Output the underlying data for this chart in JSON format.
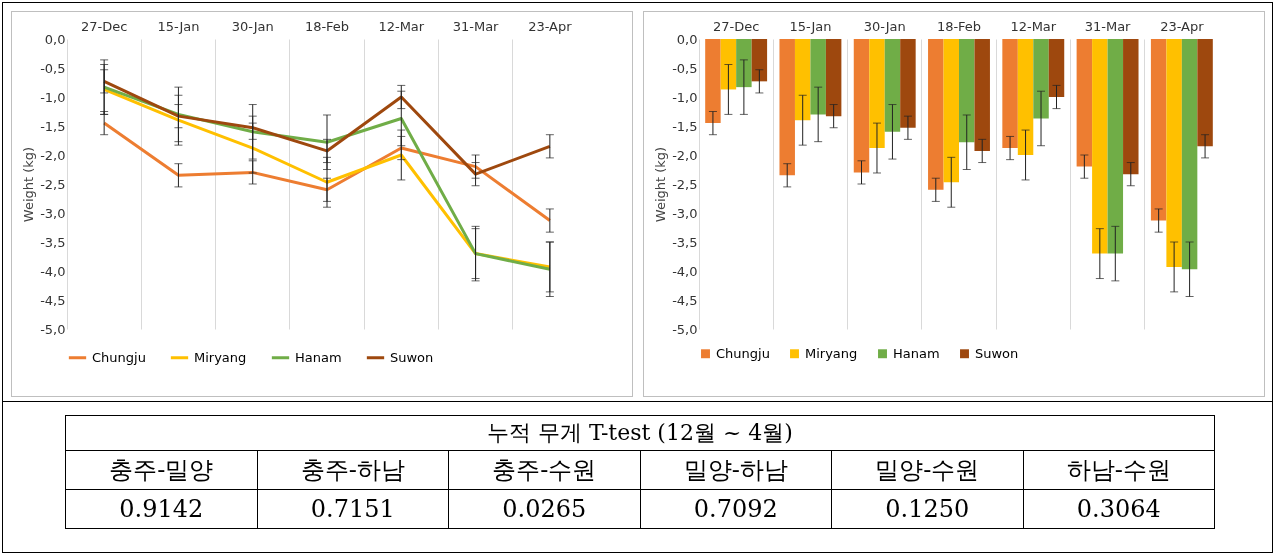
{
  "chart_data": [
    {
      "type": "line",
      "ylabel": "Weight (kg)",
      "categories": [
        "27-Dec",
        "15-Jan",
        "30-Jan",
        "18-Feb",
        "12-Mar",
        "31-Mar",
        "23-Apr"
      ],
      "series": [
        {
          "name": "Chungju",
          "color": "#ed7d31",
          "values": [
            -1.45,
            -2.35,
            -2.3,
            -2.6,
            -1.88,
            -2.2,
            -3.13
          ],
          "errors": [
            0.2,
            0.2,
            0.2,
            0.2,
            0.2,
            0.2,
            0.2
          ]
        },
        {
          "name": "Miryang",
          "color": "#ffc000",
          "values": [
            -0.87,
            -1.4,
            -1.88,
            -2.47,
            -2.0,
            -3.7,
            -3.93
          ],
          "errors": [
            0.43,
            0.43,
            0.43,
            0.43,
            0.43,
            0.43,
            0.43
          ]
        },
        {
          "name": "Hanam",
          "color": "#70ad47",
          "values": [
            -0.83,
            -1.3,
            -1.6,
            -1.78,
            -1.37,
            -3.7,
            -3.97
          ],
          "errors": [
            0.47,
            0.47,
            0.47,
            0.47,
            0.47,
            0.47,
            0.47
          ]
        },
        {
          "name": "Suwon",
          "color": "#9e480e",
          "values": [
            -0.73,
            -1.33,
            -1.53,
            -1.93,
            -1.0,
            -2.33,
            -1.85
          ],
          "errors": [
            0.2,
            0.2,
            0.2,
            0.2,
            0.2,
            0.2,
            0.2
          ]
        }
      ],
      "ylim": [
        -5,
        0
      ],
      "yticks": [
        {
          "value": 0,
          "label": "0,0"
        },
        {
          "value": -0.5,
          "label": "-0,5"
        },
        {
          "value": -1,
          "label": "-1,0"
        },
        {
          "value": -1.5,
          "label": "-1,5"
        },
        {
          "value": -2,
          "label": "-2,0"
        },
        {
          "value": -2.5,
          "label": "-2,5"
        },
        {
          "value": -3,
          "label": "-3,0"
        },
        {
          "value": -3.5,
          "label": "-3,5"
        },
        {
          "value": -4,
          "label": "-4,0"
        },
        {
          "value": -4.5,
          "label": "-4,5"
        },
        {
          "value": -5,
          "label": "-5,0"
        }
      ],
      "grid": "x",
      "legend": "bottom",
      "marker": "none",
      "line_style": "solid"
    },
    {
      "type": "bar",
      "ylabel": "Weight (kg)",
      "categories": [
        "27-Dec",
        "15-Jan",
        "30-Jan",
        "18-Feb",
        "12-Mar",
        "31-Mar",
        "23-Apr"
      ],
      "series": [
        {
          "name": "Chungju",
          "color": "#ed7d31",
          "values": [
            -1.45,
            -2.35,
            -2.3,
            -2.6,
            -1.88,
            -2.2,
            -3.13
          ],
          "errors": [
            0.2,
            0.2,
            0.2,
            0.2,
            0.2,
            0.2,
            0.2
          ]
        },
        {
          "name": "Miryang",
          "color": "#ffc000",
          "values": [
            -0.87,
            -1.4,
            -1.88,
            -2.47,
            -2.0,
            -3.7,
            -3.93
          ],
          "errors": [
            0.43,
            0.43,
            0.43,
            0.43,
            0.43,
            0.43,
            0.43
          ]
        },
        {
          "name": "Hanam",
          "color": "#70ad47",
          "values": [
            -0.83,
            -1.3,
            -1.6,
            -1.78,
            -1.37,
            -3.7,
            -3.97
          ],
          "errors": [
            0.47,
            0.47,
            0.47,
            0.47,
            0.47,
            0.47,
            0.47
          ]
        },
        {
          "name": "Suwon",
          "color": "#9e480e",
          "values": [
            -0.73,
            -1.33,
            -1.53,
            -1.93,
            -1.0,
            -2.33,
            -1.85
          ],
          "errors": [
            0.2,
            0.2,
            0.2,
            0.2,
            0.2,
            0.2,
            0.2
          ]
        }
      ],
      "ylim": [
        -5,
        0
      ],
      "yticks": [
        {
          "value": 0,
          "label": "0,0"
        },
        {
          "value": -0.5,
          "label": "-0,5"
        },
        {
          "value": -1,
          "label": "-1,0"
        },
        {
          "value": -1.5,
          "label": "-1,5"
        },
        {
          "value": -2,
          "label": "-2,0"
        },
        {
          "value": -2.5,
          "label": "-2,5"
        },
        {
          "value": -3,
          "label": "-3,0"
        },
        {
          "value": -3.5,
          "label": "-3,5"
        },
        {
          "value": -4,
          "label": "-4,0"
        },
        {
          "value": -4.5,
          "label": "-4,5"
        },
        {
          "value": -5,
          "label": "-5,0"
        }
      ],
      "grid": "x",
      "legend": "bottom"
    },
    {
      "type": "other",
      "title": "누적 무게 T-test (12월 ~ 4월)",
      "categories": [
        "충주-밀양",
        "충주-하남",
        "충주-수원",
        "밀양-하남",
        "밀양-수원",
        "하남-수원"
      ],
      "annotations": [
        "0.9142",
        "0.7151",
        "0.0265",
        "0.7092",
        "0.1250",
        "0.3064"
      ]
    }
  ]
}
